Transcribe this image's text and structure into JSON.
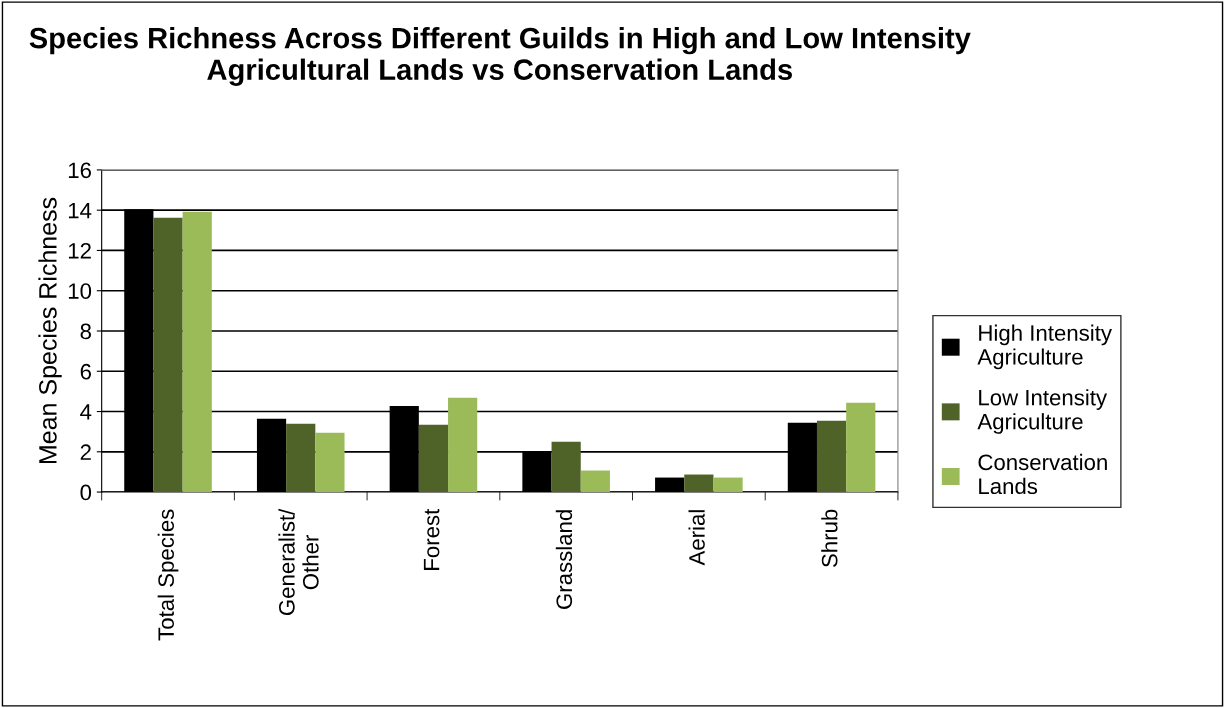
{
  "chart_data": {
    "type": "bar",
    "title": "Species Richness Across Different Guilds in High and Low Intensity Agricultural Lands vs Conservation Lands",
    "ylabel": "Mean Species Richness",
    "categories": [
      "Total Species",
      "Generalist/\nOther",
      "Forest",
      "Grassland",
      "Aerial",
      "Shrub"
    ],
    "series": [
      {
        "name": "High Intensity\nAgriculture",
        "color": "#000000",
        "values": [
          14.05,
          3.64,
          4.28,
          1.99,
          0.72,
          3.44
        ]
      },
      {
        "name": "Low Intensity\nAgriculture",
        "color": "#4f6228",
        "values": [
          13.62,
          3.39,
          3.34,
          2.5,
          0.87,
          3.54
        ]
      },
      {
        "name": "Conservation\nLands",
        "color": "#9bbb59",
        "values": [
          13.92,
          2.95,
          4.68,
          1.07,
          0.72,
          4.43
        ]
      }
    ],
    "ylim": [
      0,
      16
    ],
    "yticks": [
      0,
      2,
      4,
      6,
      8,
      10,
      12,
      14,
      16
    ],
    "grid": "y",
    "legend": "right"
  }
}
